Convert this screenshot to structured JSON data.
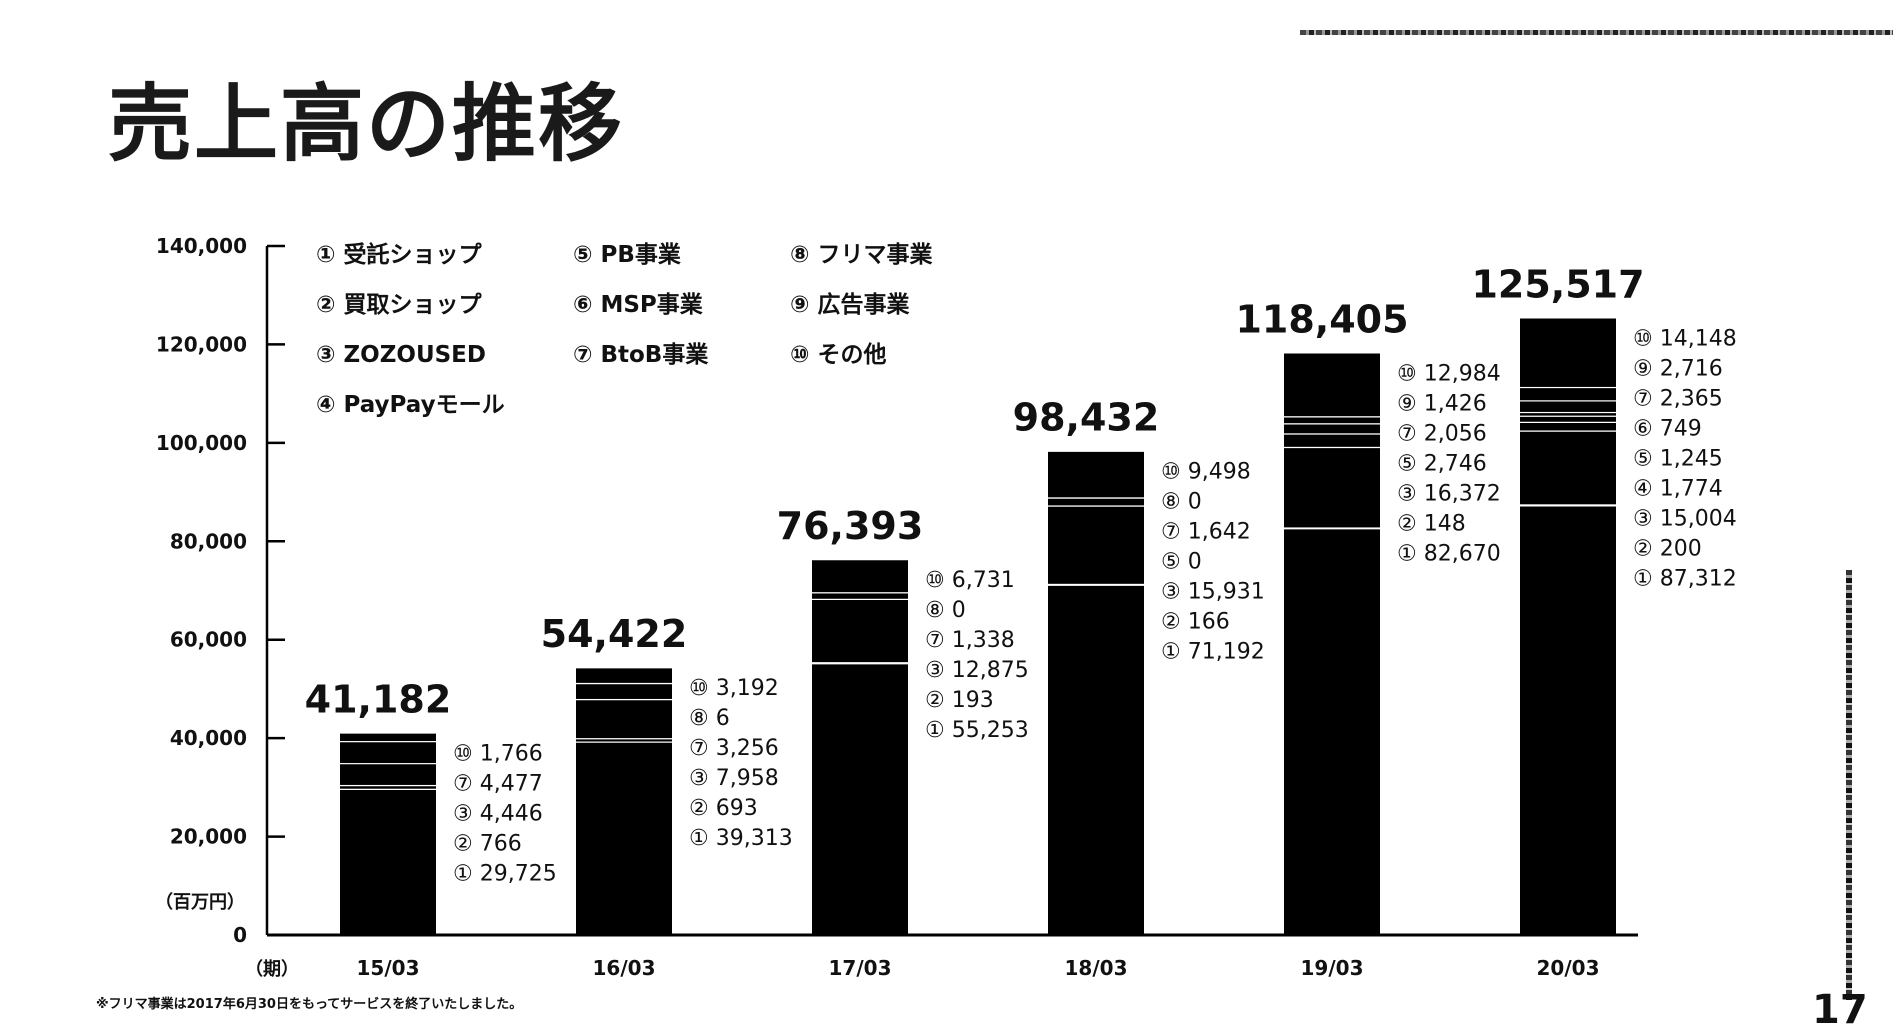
{
  "page": {
    "title": "売上高の推移",
    "footnote": "※フリマ事業は2017年6月30日をもってサービスを終了いたしました。",
    "page_number": "17"
  },
  "chart_data": {
    "type": "bar",
    "stacked": true,
    "unit_label": "（百万円）",
    "xlabel": "（期）",
    "ylim": [
      0,
      140000
    ],
    "y_ticks": [
      "0",
      "20,000",
      "40,000",
      "60,000",
      "80,000",
      "100,000",
      "120,000",
      "140,000"
    ],
    "categories": [
      "15/03",
      "16/03",
      "17/03",
      "18/03",
      "19/03",
      "20/03"
    ],
    "legend": [
      {
        "num": "①",
        "name": "受託ショップ"
      },
      {
        "num": "②",
        "name": "買取ショップ"
      },
      {
        "num": "③",
        "name": "ZOZOUSED"
      },
      {
        "num": "④",
        "name": "PayPayモール"
      },
      {
        "num": "⑤",
        "name": "PB事業"
      },
      {
        "num": "⑥",
        "name": "MSP事業"
      },
      {
        "num": "⑦",
        "name": "BtoB事業"
      },
      {
        "num": "⑧",
        "name": "フリマ事業"
      },
      {
        "num": "⑨",
        "name": "広告事業"
      },
      {
        "num": "⑩",
        "name": "その他"
      }
    ],
    "totals": [
      "41,182",
      "54,422",
      "76,393",
      "98,432",
      "118,405",
      "125,517"
    ],
    "bars": [
      {
        "category": "15/03",
        "total": 41182,
        "segments": [
          {
            "num": "①",
            "value": 29725,
            "label": "29,725"
          },
          {
            "num": "②",
            "value": 766,
            "label": "766"
          },
          {
            "num": "③",
            "value": 4446,
            "label": "4,446"
          },
          {
            "num": "⑦",
            "value": 4477,
            "label": "4,477"
          },
          {
            "num": "⑩",
            "value": 1766,
            "label": "1,766"
          }
        ]
      },
      {
        "category": "16/03",
        "total": 54422,
        "segments": [
          {
            "num": "①",
            "value": 39313,
            "label": "39,313"
          },
          {
            "num": "②",
            "value": 693,
            "label": "693"
          },
          {
            "num": "③",
            "value": 7958,
            "label": "7,958"
          },
          {
            "num": "⑦",
            "value": 3256,
            "label": "3,256"
          },
          {
            "num": "⑧",
            "value": 6,
            "label": "6"
          },
          {
            "num": "⑩",
            "value": 3192,
            "label": "3,192"
          }
        ]
      },
      {
        "category": "17/03",
        "total": 76393,
        "segments": [
          {
            "num": "①",
            "value": 55253,
            "label": "55,253"
          },
          {
            "num": "②",
            "value": 193,
            "label": "193"
          },
          {
            "num": "③",
            "value": 12875,
            "label": "12,875"
          },
          {
            "num": "⑦",
            "value": 1338,
            "label": "1,338"
          },
          {
            "num": "⑧",
            "value": 0,
            "label": "0"
          },
          {
            "num": "⑩",
            "value": 6731,
            "label": "6,731"
          }
        ]
      },
      {
        "category": "18/03",
        "total": 98432,
        "segments": [
          {
            "num": "①",
            "value": 71192,
            "label": "71,192"
          },
          {
            "num": "②",
            "value": 166,
            "label": "166"
          },
          {
            "num": "③",
            "value": 15931,
            "label": "15,931"
          },
          {
            "num": "⑤",
            "value": 0,
            "label": "0"
          },
          {
            "num": "⑦",
            "value": 1642,
            "label": "1,642"
          },
          {
            "num": "⑧",
            "value": 0,
            "label": "0"
          },
          {
            "num": "⑩",
            "value": 9498,
            "label": "9,498"
          }
        ]
      },
      {
        "category": "19/03",
        "total": 118405,
        "segments": [
          {
            "num": "①",
            "value": 82670,
            "label": "82,670"
          },
          {
            "num": "②",
            "value": 148,
            "label": "148"
          },
          {
            "num": "③",
            "value": 16372,
            "label": "16,372"
          },
          {
            "num": "⑤",
            "value": 2746,
            "label": "2,746"
          },
          {
            "num": "⑦",
            "value": 2056,
            "label": "2,056"
          },
          {
            "num": "⑨",
            "value": 1426,
            "label": "1,426"
          },
          {
            "num": "⑩",
            "value": 12984,
            "label": "12,984"
          }
        ]
      },
      {
        "category": "20/03",
        "total": 125517,
        "segments": [
          {
            "num": "①",
            "value": 87312,
            "label": "87,312"
          },
          {
            "num": "②",
            "value": 200,
            "label": "200"
          },
          {
            "num": "③",
            "value": 15004,
            "label": "15,004"
          },
          {
            "num": "④",
            "value": 1774,
            "label": "1,774"
          },
          {
            "num": "⑤",
            "value": 1245,
            "label": "1,245"
          },
          {
            "num": "⑥",
            "value": 749,
            "label": "749"
          },
          {
            "num": "⑦",
            "value": 2365,
            "label": "2,365"
          },
          {
            "num": "⑨",
            "value": 2716,
            "label": "2,716"
          },
          {
            "num": "⑩",
            "value": 14148,
            "label": "14,148"
          }
        ]
      }
    ],
    "colors": {
      "bar": "#000000",
      "separator": "#ffffff",
      "axis": "#000000"
    }
  }
}
